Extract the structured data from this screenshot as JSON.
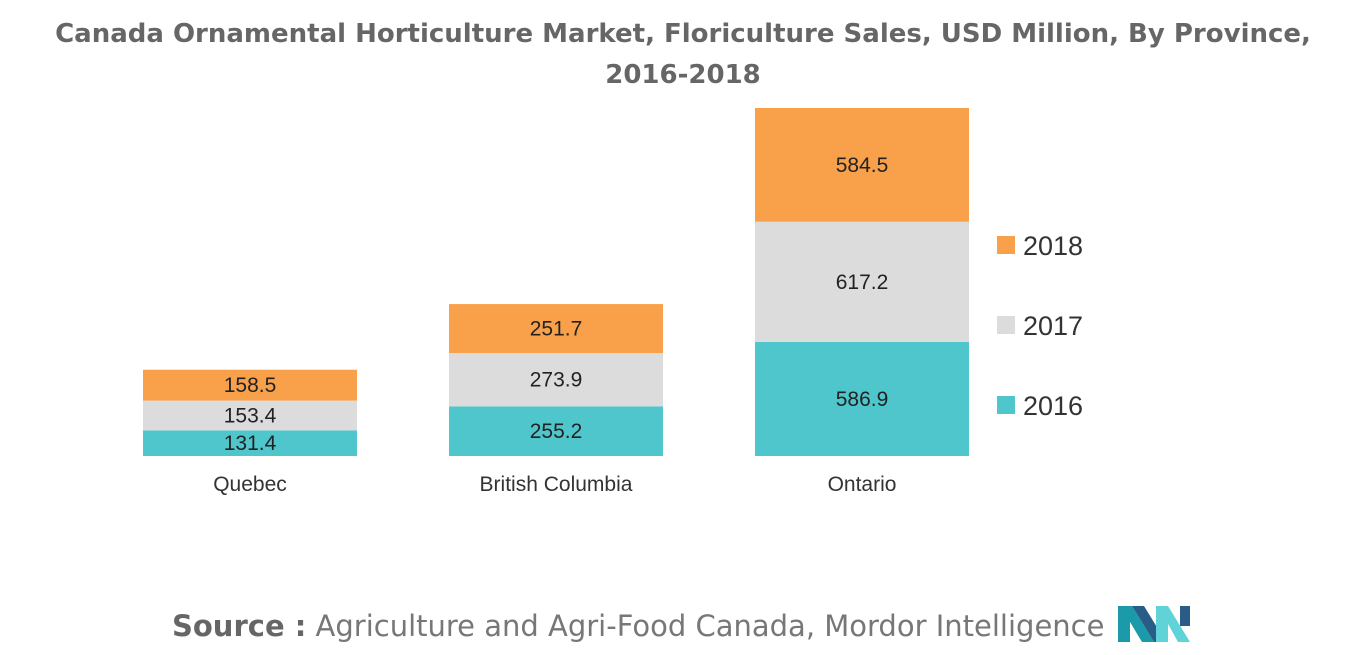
{
  "chart_data": {
    "type": "bar",
    "stacked": true,
    "title": "Canada Ornamental Horticulture Market, Floriculture Sales, USD Million, By Province, 2016-2018",
    "categories": [
      "Quebec",
      "British Columbia",
      "Ontario"
    ],
    "series": [
      {
        "name": "2016",
        "color": "#4FC6CC",
        "values": [
          131.4,
          255.2,
          586.9
        ]
      },
      {
        "name": "2017",
        "color": "#DCDCDC",
        "values": [
          153.4,
          273.9,
          617.2
        ]
      },
      {
        "name": "2018",
        "color": "#F9A04A",
        "values": [
          158.5,
          251.7,
          584.5
        ]
      }
    ],
    "legend_position": "right",
    "legend_order": [
      "2018",
      "2017",
      "2016"
    ],
    "grid": false,
    "data_labels": true
  },
  "source": {
    "prefix": "Source :",
    "text": "Agriculture and Agri-Food Canada, Mordor Intelligence"
  },
  "logo": {
    "icon": "mordor-intelligence-logo-icon",
    "colors": [
      "#1B9AAA",
      "#2A5C88",
      "#5FD3D8"
    ]
  }
}
